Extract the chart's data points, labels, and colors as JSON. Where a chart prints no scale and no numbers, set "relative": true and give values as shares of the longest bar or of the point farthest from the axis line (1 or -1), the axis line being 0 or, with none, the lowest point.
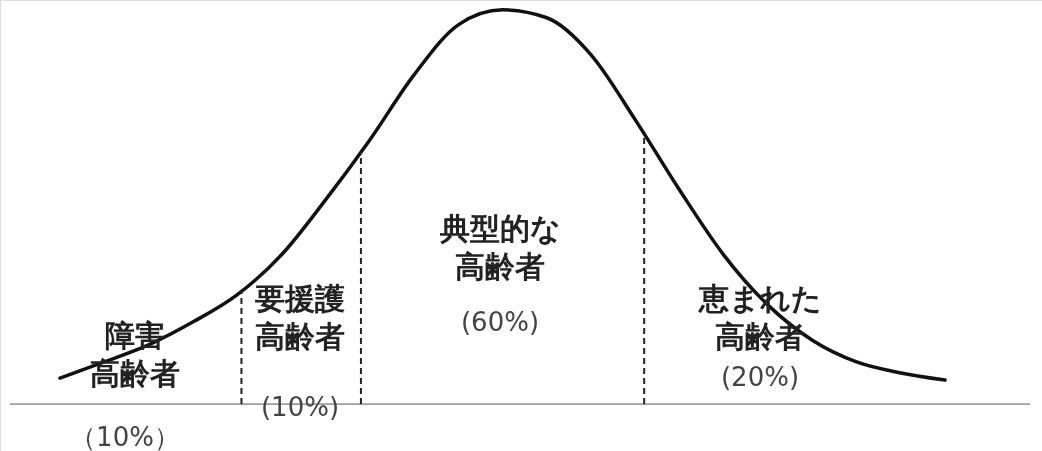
{
  "chart_data": {
    "type": "line",
    "relative": true,
    "categories": [
      null,
      null,
      null,
      null,
      null,
      null,
      null,
      null,
      null,
      null,
      null,
      null,
      null,
      null,
      null,
      null,
      null,
      null,
      null,
      null,
      null
    ],
    "series": [
      {
        "color": "#111111",
        "values": [
          0.066,
          0.107,
          0.15,
          0.208,
          0.277,
          0.378,
          0.518,
          0.67,
          0.835,
          0.962,
          1.0,
          0.98,
          0.886,
          0.721,
          0.543,
          0.378,
          0.251,
          0.162,
          0.107,
          0.079,
          0.061
        ]
      }
    ],
    "annotations": [
      "障害高齢者",
      "（10%）",
      "要援護高齢者",
      "(10%)",
      "典型的な高齢者",
      "(60%)",
      "恵まれた高齢者",
      "(20%)"
    ],
    "marker": "none",
    "line_style": "solid"
  }
}
